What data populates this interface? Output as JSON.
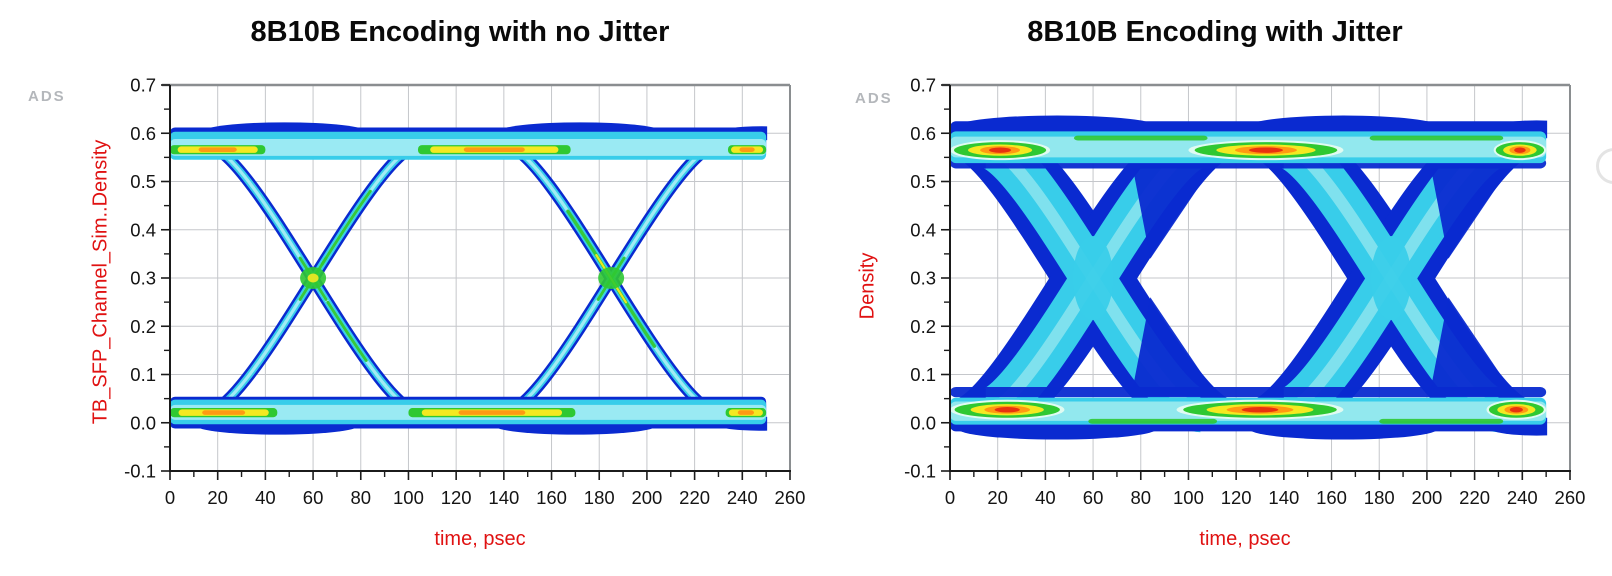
{
  "chart_data": [
    {
      "type": "heatmap",
      "subtype": "eye-diagram-density",
      "title": "8B10B Encoding with no Jitter",
      "xlabel": "time, psec",
      "ylabel": "TB_SFP_Channel_Sim..Density",
      "watermark": "ADS",
      "xlim": [
        0,
        260
      ],
      "ylim": [
        -0.1,
        0.7
      ],
      "xticks": [
        0,
        20,
        40,
        60,
        80,
        100,
        120,
        140,
        160,
        180,
        200,
        220,
        240,
        260
      ],
      "yticks": [
        0.7,
        0.6,
        0.5,
        0.4,
        0.3,
        0.2,
        0.1,
        0.0,
        -0.1
      ],
      "x_minor_step_psec": 10,
      "y_minor_step": 0.05,
      "grid": true,
      "legend": "none",
      "eye": {
        "jitter": false,
        "high_level": 0.575,
        "low_level": 0.022,
        "crossing_level": 0.3,
        "crossing_times_psec": [
          60,
          185
        ],
        "unit_interval_psec": 125,
        "transition_span_psec": 90,
        "data_start_psec": 0,
        "data_end_psec": 250,
        "eye_amplitude": 0.553,
        "hotspots_top_psec": [
          [
            0,
            40
          ],
          [
            104,
            168
          ],
          [
            234,
            250
          ]
        ],
        "hotspots_bottom_psec": [
          [
            0,
            45
          ],
          [
            100,
            170
          ],
          [
            233,
            250
          ]
        ],
        "colors": {
          "outer": "#0a2ad0",
          "body": "#38cdea",
          "core": "#aceef5",
          "hot_green": "#2fc832",
          "hot_yellow": "#f4e921",
          "hot_orange": "#ff9a12",
          "hot_red": "#e8320f"
        }
      }
    },
    {
      "type": "heatmap",
      "subtype": "eye-diagram-density",
      "title": "8B10B Encoding with Jitter",
      "xlabel": "time, psec",
      "ylabel": "Density",
      "watermark": "ADS",
      "xlim": [
        0,
        260
      ],
      "ylim": [
        -0.1,
        0.7
      ],
      "xticks": [
        0,
        20,
        40,
        60,
        80,
        100,
        120,
        140,
        160,
        180,
        200,
        220,
        240,
        260
      ],
      "yticks": [
        0.7,
        0.6,
        0.5,
        0.4,
        0.3,
        0.2,
        0.1,
        0.0,
        -0.1
      ],
      "x_minor_step_psec": 10,
      "y_minor_step": 0.05,
      "grid": true,
      "legend": "none",
      "eye": {
        "jitter": true,
        "jitter_spread_psec": 26,
        "high_level": 0.572,
        "low_level": 0.026,
        "crossing_level": 0.3,
        "crossing_times_psec": [
          60,
          185
        ],
        "unit_interval_psec": 125,
        "transition_span_psec": 90,
        "data_start_psec": 0,
        "data_end_psec": 250,
        "eye_amplitude": 0.546,
        "hotspots_top_psec": [
          [
            0,
            42
          ],
          [
            100,
            165
          ],
          [
            228,
            250
          ]
        ],
        "hotspots_bottom_psec": [
          [
            0,
            48
          ],
          [
            95,
            165
          ],
          [
            225,
            250
          ]
        ],
        "colors": {
          "outer": "#0a2ad0",
          "body": "#38cdea",
          "core": "#b9f3f0",
          "pale": "#e0fbf2",
          "hot_green": "#2fc832",
          "hot_yellow": "#f4e921",
          "hot_orange": "#ff9a12",
          "hot_red": "#e8320f"
        }
      }
    }
  ]
}
